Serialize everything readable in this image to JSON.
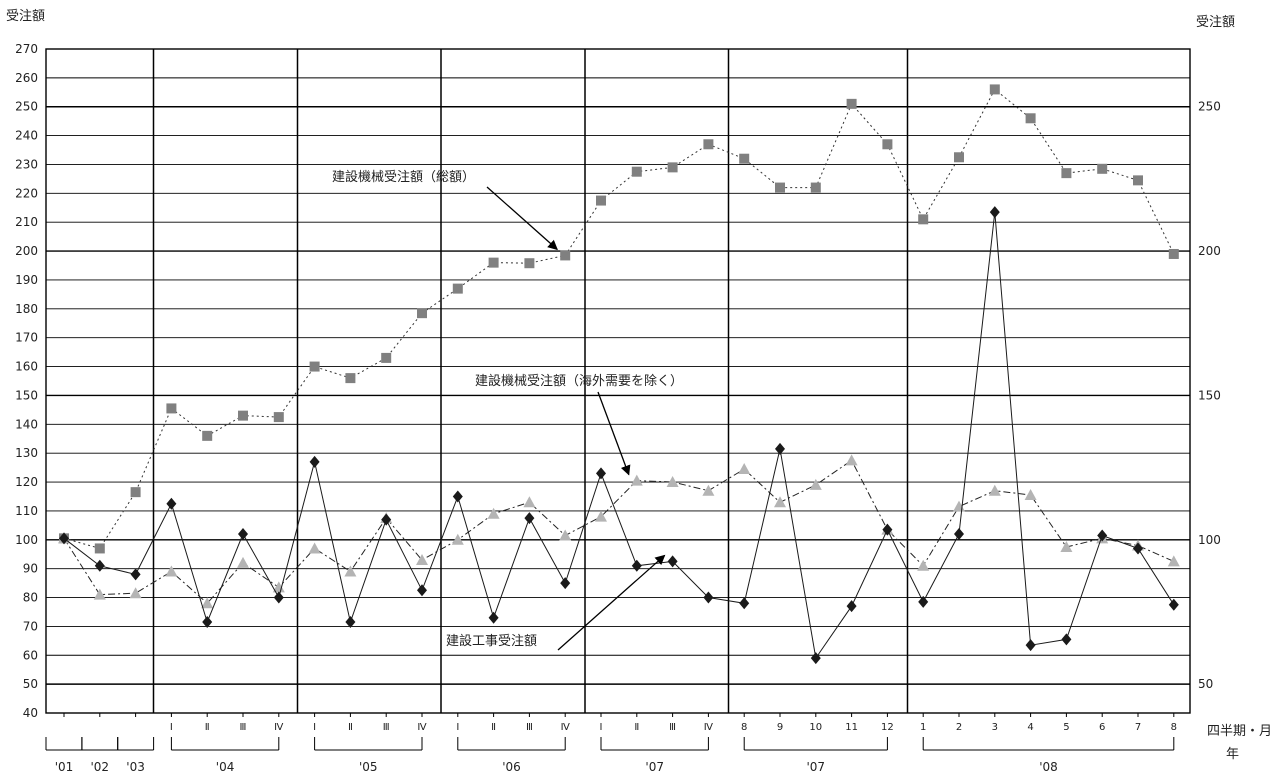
{
  "chart_data": {
    "type": "line",
    "ylabel_left": "受注額",
    "ylabel_right": "受注額",
    "ylim": [
      40,
      270
    ],
    "yticks_left": [
      40,
      50,
      60,
      70,
      80,
      90,
      100,
      110,
      120,
      130,
      140,
      150,
      160,
      170,
      180,
      190,
      200,
      210,
      220,
      230,
      240,
      250,
      260,
      270
    ],
    "yticks_right": [
      50,
      100,
      150,
      200,
      250
    ],
    "x_axis_label_period": "四半期・月",
    "x_axis_label_year": "年",
    "x_ticks": [
      "",
      "",
      "",
      "Ⅰ",
      "Ⅱ",
      "Ⅲ",
      "Ⅳ",
      "Ⅰ",
      "Ⅱ",
      "Ⅲ",
      "Ⅳ",
      "Ⅰ",
      "Ⅱ",
      "Ⅲ",
      "Ⅳ",
      "Ⅰ",
      "Ⅱ",
      "Ⅲ",
      "Ⅳ",
      "8",
      "9",
      "10",
      "11",
      "12",
      "1",
      "2",
      "3",
      "4",
      "5",
      "6",
      "7",
      "8"
    ],
    "year_groups": [
      {
        "label": "'01",
        "from": 0,
        "to": 0
      },
      {
        "label": "'02",
        "from": 1,
        "to": 1
      },
      {
        "label": "'03",
        "from": 2,
        "to": 2
      },
      {
        "label": "'04",
        "from": 3,
        "to": 6
      },
      {
        "label": "'05",
        "from": 7,
        "to": 10
      },
      {
        "label": "'06",
        "from": 11,
        "to": 14
      },
      {
        "label": "'07",
        "from": 15,
        "to": 18
      },
      {
        "label": "'07",
        "from": 19,
        "to": 23
      },
      {
        "label": "'08",
        "from": 24,
        "to": 31
      }
    ],
    "series": [
      {
        "name": "建設機械受注額（総額）",
        "color": "#808080",
        "marker": "square",
        "line": "dotted",
        "values": [
          100.5,
          97,
          116.5,
          145.5,
          136,
          143,
          142.5,
          160,
          156,
          163,
          178.5,
          187,
          196,
          195.8,
          198.5,
          217.5,
          227.5,
          229,
          237,
          232,
          222,
          222,
          251,
          237,
          211,
          232.5,
          256,
          246,
          227,
          228.5,
          224.5,
          199
        ]
      },
      {
        "name": "建設機械受注額（海外需要を除く）",
        "color": "#b4b4b4",
        "marker": "triangle",
        "line": "dashdot",
        "values": [
          100.5,
          81,
          81.5,
          89,
          78,
          92,
          83.5,
          97,
          89,
          107.5,
          93,
          100,
          109,
          113,
          101.5,
          108,
          120.5,
          120,
          117,
          124.5,
          113,
          119,
          127.5,
          103.5,
          91,
          111.5,
          117,
          115.5,
          97.5,
          100.5,
          98,
          92.5
        ]
      },
      {
        "name": "建設工事受注額",
        "color": "#1a1a1a",
        "marker": "diamond",
        "line": "solid",
        "values": [
          100.5,
          91,
          88,
          112.5,
          71.5,
          102,
          80,
          127,
          71.5,
          107,
          82.5,
          115,
          73,
          107.5,
          85,
          123,
          91,
          92.5,
          80,
          78,
          131.5,
          59,
          77,
          103.5,
          78.5,
          102,
          213.5,
          63.5,
          65.5,
          101.5,
          97,
          77.5
        ]
      }
    ],
    "annotations": [
      {
        "text": "建設機械受注額（総額）",
        "target_series": 0,
        "target_index": 14
      },
      {
        "text": "建設機械受注額（海外需要を除く）",
        "target_series": 1,
        "target_index": 16
      },
      {
        "text": "建設工事受注額",
        "target_series": 2,
        "target_index": 17
      }
    ]
  }
}
